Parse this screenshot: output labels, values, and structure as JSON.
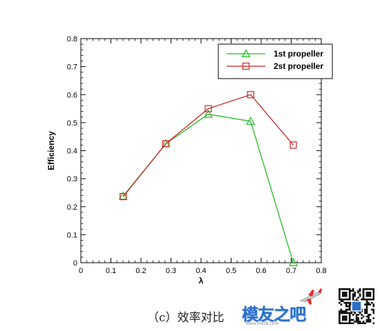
{
  "chart_data": {
    "type": "line",
    "title": "",
    "xlabel": "λ",
    "ylabel": "Efficiency",
    "xlim": [
      0,
      0.8
    ],
    "ylim": [
      0,
      0.8
    ],
    "x_ticks": [
      "0",
      "0.1",
      "0.2",
      "0.3",
      "0.4",
      "0.5",
      "0.6",
      "0.7",
      "0.8"
    ],
    "y_ticks": [
      "0",
      "0.1",
      "0.2",
      "0.3",
      "0.4",
      "0.5",
      "0.6",
      "0.7",
      "0.8"
    ],
    "grid": false,
    "legend_position": "top-right",
    "series": [
      {
        "name": "1st propeller",
        "color": "#22bb22",
        "marker": "triangle",
        "x": [
          0.141,
          0.283,
          0.424,
          0.565,
          0.707
        ],
        "y": [
          0.238,
          0.425,
          0.53,
          0.505,
          0.0
        ]
      },
      {
        "name": "2st propeller",
        "color": "#cc2222",
        "marker": "square",
        "x": [
          0.141,
          0.283,
          0.424,
          0.565,
          0.707
        ],
        "y": [
          0.236,
          0.425,
          0.55,
          0.6,
          0.42
        ]
      }
    ]
  },
  "caption": "（c）效率对比",
  "watermark": {
    "text": "模友之吧",
    "url": "www.moz8.com"
  },
  "icons": [
    "airplane-logo-icon",
    "qr-code-icon"
  ]
}
